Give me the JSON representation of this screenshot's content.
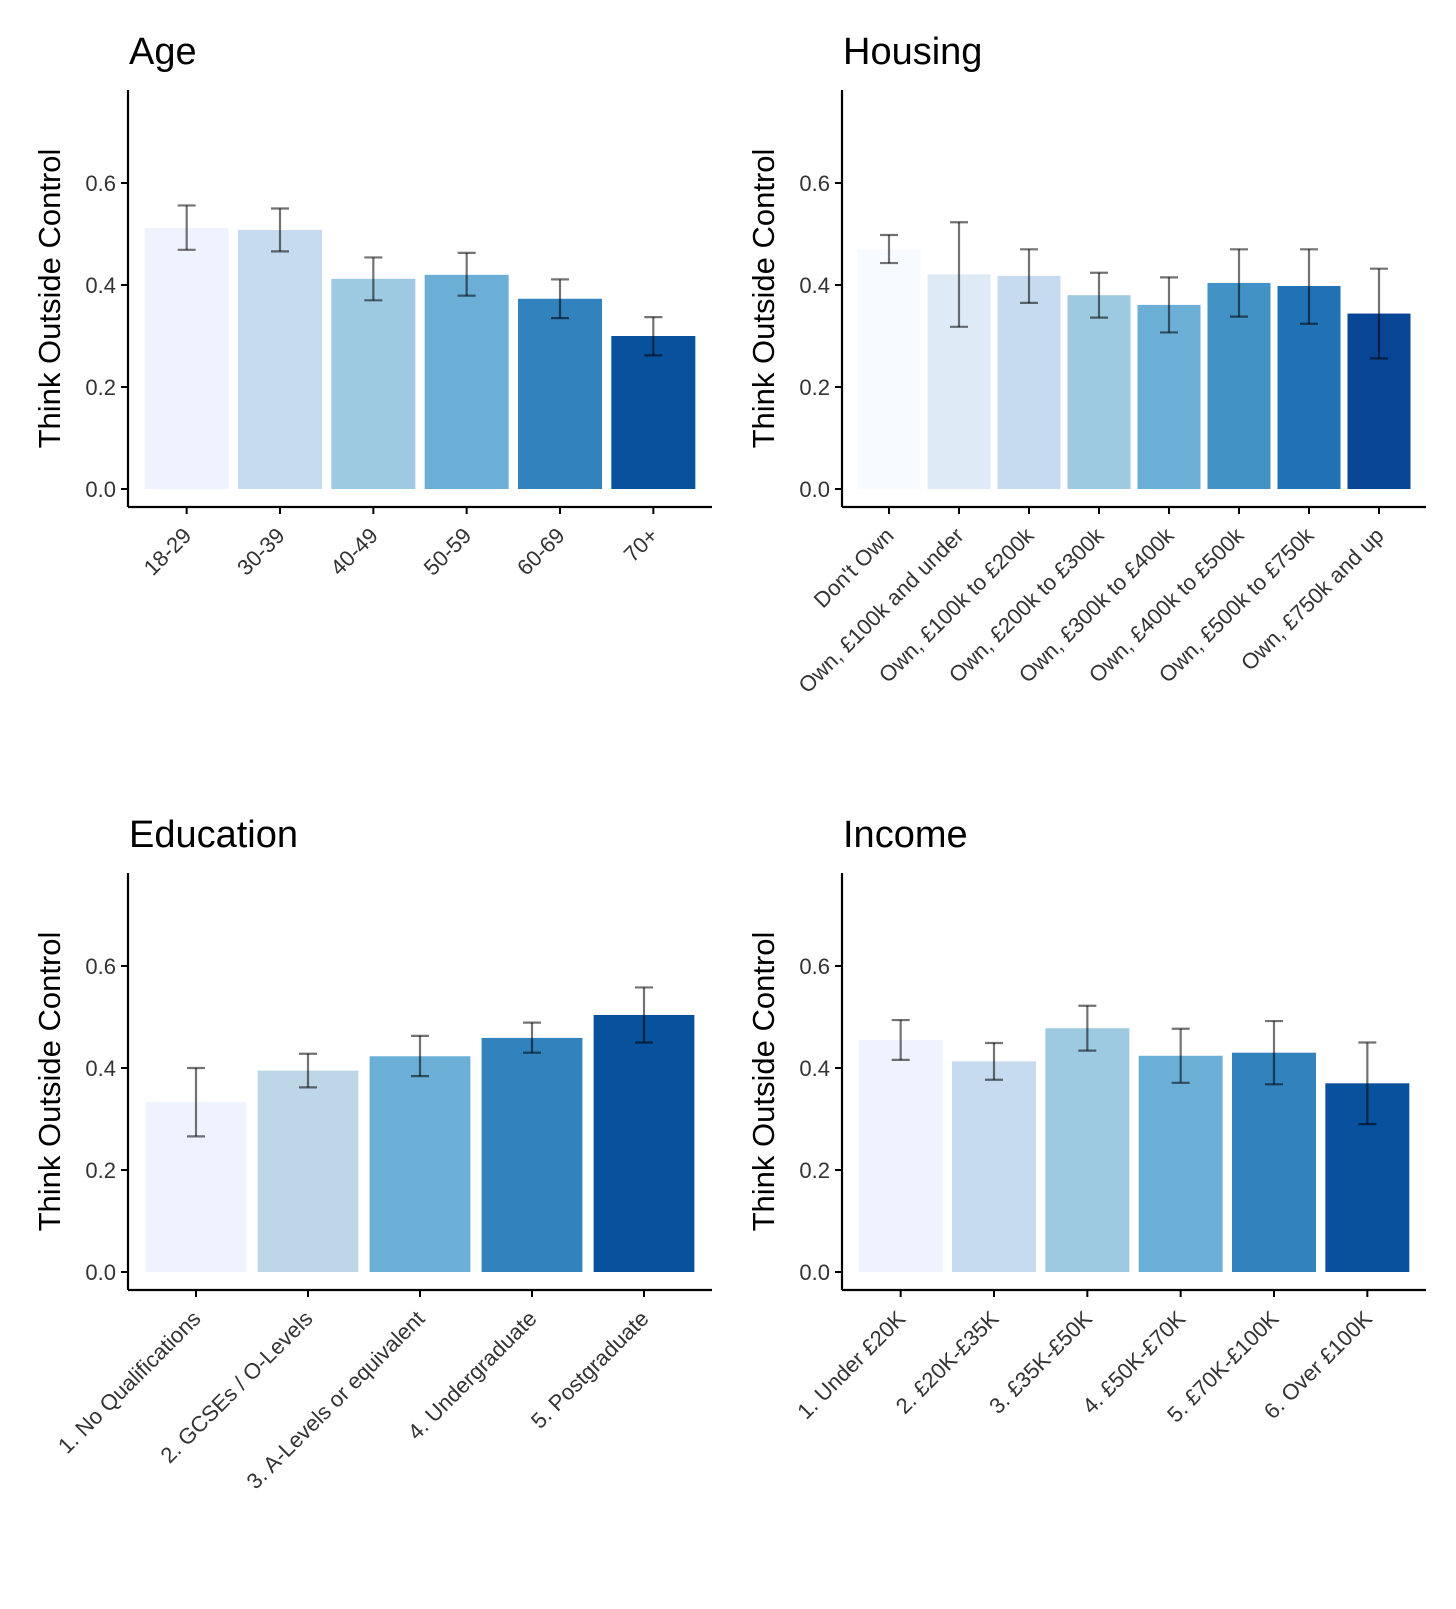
{
  "chart_data": [
    {
      "type": "bar",
      "title": "Age",
      "ylabel": "Think Outside Control",
      "xlabel": "",
      "ylim": [
        0,
        0.75
      ],
      "yticks": [
        "0.0",
        "0.2",
        "0.4",
        "0.6"
      ],
      "categories": [
        "18-29",
        "30-39",
        "40-49",
        "50-59",
        "60-69",
        "70+"
      ],
      "values": [
        0.512,
        0.508,
        0.412,
        0.42,
        0.373,
        0.3
      ],
      "error_low": [
        0.469,
        0.466,
        0.37,
        0.379,
        0.335,
        0.262
      ],
      "error_high": [
        0.556,
        0.55,
        0.454,
        0.463,
        0.411,
        0.337
      ],
      "colors": [
        "#eff3ff",
        "#c6dbef",
        "#9ecae1",
        "#6baed6",
        "#3182bd",
        "#08519c"
      ],
      "grid": false,
      "legend": "none"
    },
    {
      "type": "bar",
      "title": "Housing",
      "ylabel": "Think Outside Control",
      "xlabel": "",
      "ylim": [
        0,
        0.75
      ],
      "yticks": [
        "0.0",
        "0.2",
        "0.4",
        "0.6"
      ],
      "categories": [
        "Don't Own",
        "Own, £100k and under",
        "Own, £100k to £200k",
        "Own, £200k to £300k",
        "Own, £300k to £400k",
        "Own, £400k to £500k",
        "Own, £500k to £750k",
        "Own, £750k and up"
      ],
      "values": [
        0.47,
        0.421,
        0.418,
        0.38,
        0.361,
        0.404,
        0.398,
        0.344
      ],
      "error_low": [
        0.443,
        0.318,
        0.365,
        0.336,
        0.307,
        0.338,
        0.324,
        0.256
      ],
      "error_high": [
        0.498,
        0.523,
        0.47,
        0.424,
        0.415,
        0.47,
        0.47,
        0.432
      ],
      "colors": [
        "#f7fbff",
        "#deebf7",
        "#c6dbef",
        "#9ecae1",
        "#6baed6",
        "#4292c6",
        "#2171b5",
        "#084594"
      ],
      "grid": false,
      "legend": "none"
    },
    {
      "type": "bar",
      "title": "Education",
      "ylabel": "Think Outside Control",
      "xlabel": "",
      "ylim": [
        0,
        0.75
      ],
      "yticks": [
        "0.0",
        "0.2",
        "0.4",
        "0.6"
      ],
      "categories": [
        "1. No Qualifications",
        "2. GCSEs / O-Levels",
        "3. A-Levels or equivalent",
        "4. Undergraduate",
        "5. Postgraduate"
      ],
      "values": [
        0.333,
        0.395,
        0.423,
        0.459,
        0.504
      ],
      "error_low": [
        0.266,
        0.362,
        0.384,
        0.43,
        0.45
      ],
      "error_high": [
        0.4,
        0.428,
        0.463,
        0.489,
        0.558
      ],
      "colors": [
        "#eff3ff",
        "#bdd7e7",
        "#6baed6",
        "#3182bd",
        "#08519c"
      ],
      "grid": false,
      "legend": "none"
    },
    {
      "type": "bar",
      "title": "Income",
      "ylabel": "Think Outside Control",
      "xlabel": "",
      "ylim": [
        0,
        0.75
      ],
      "yticks": [
        "0.0",
        "0.2",
        "0.4",
        "0.6"
      ],
      "categories": [
        "1. Under £20K",
        "2. £20K-£35K",
        "3. £35K-£50K",
        "4. £50K-£70K",
        "5. £70K-£100K",
        "6. Over £100K"
      ],
      "values": [
        0.455,
        0.413,
        0.478,
        0.424,
        0.43,
        0.37
      ],
      "error_low": [
        0.416,
        0.377,
        0.434,
        0.371,
        0.368,
        0.29
      ],
      "error_high": [
        0.494,
        0.449,
        0.522,
        0.477,
        0.492,
        0.45
      ],
      "colors": [
        "#eff3ff",
        "#c6dbef",
        "#9ecae1",
        "#6baed6",
        "#3182bd",
        "#08519c"
      ],
      "grid": false,
      "legend": "none"
    }
  ]
}
